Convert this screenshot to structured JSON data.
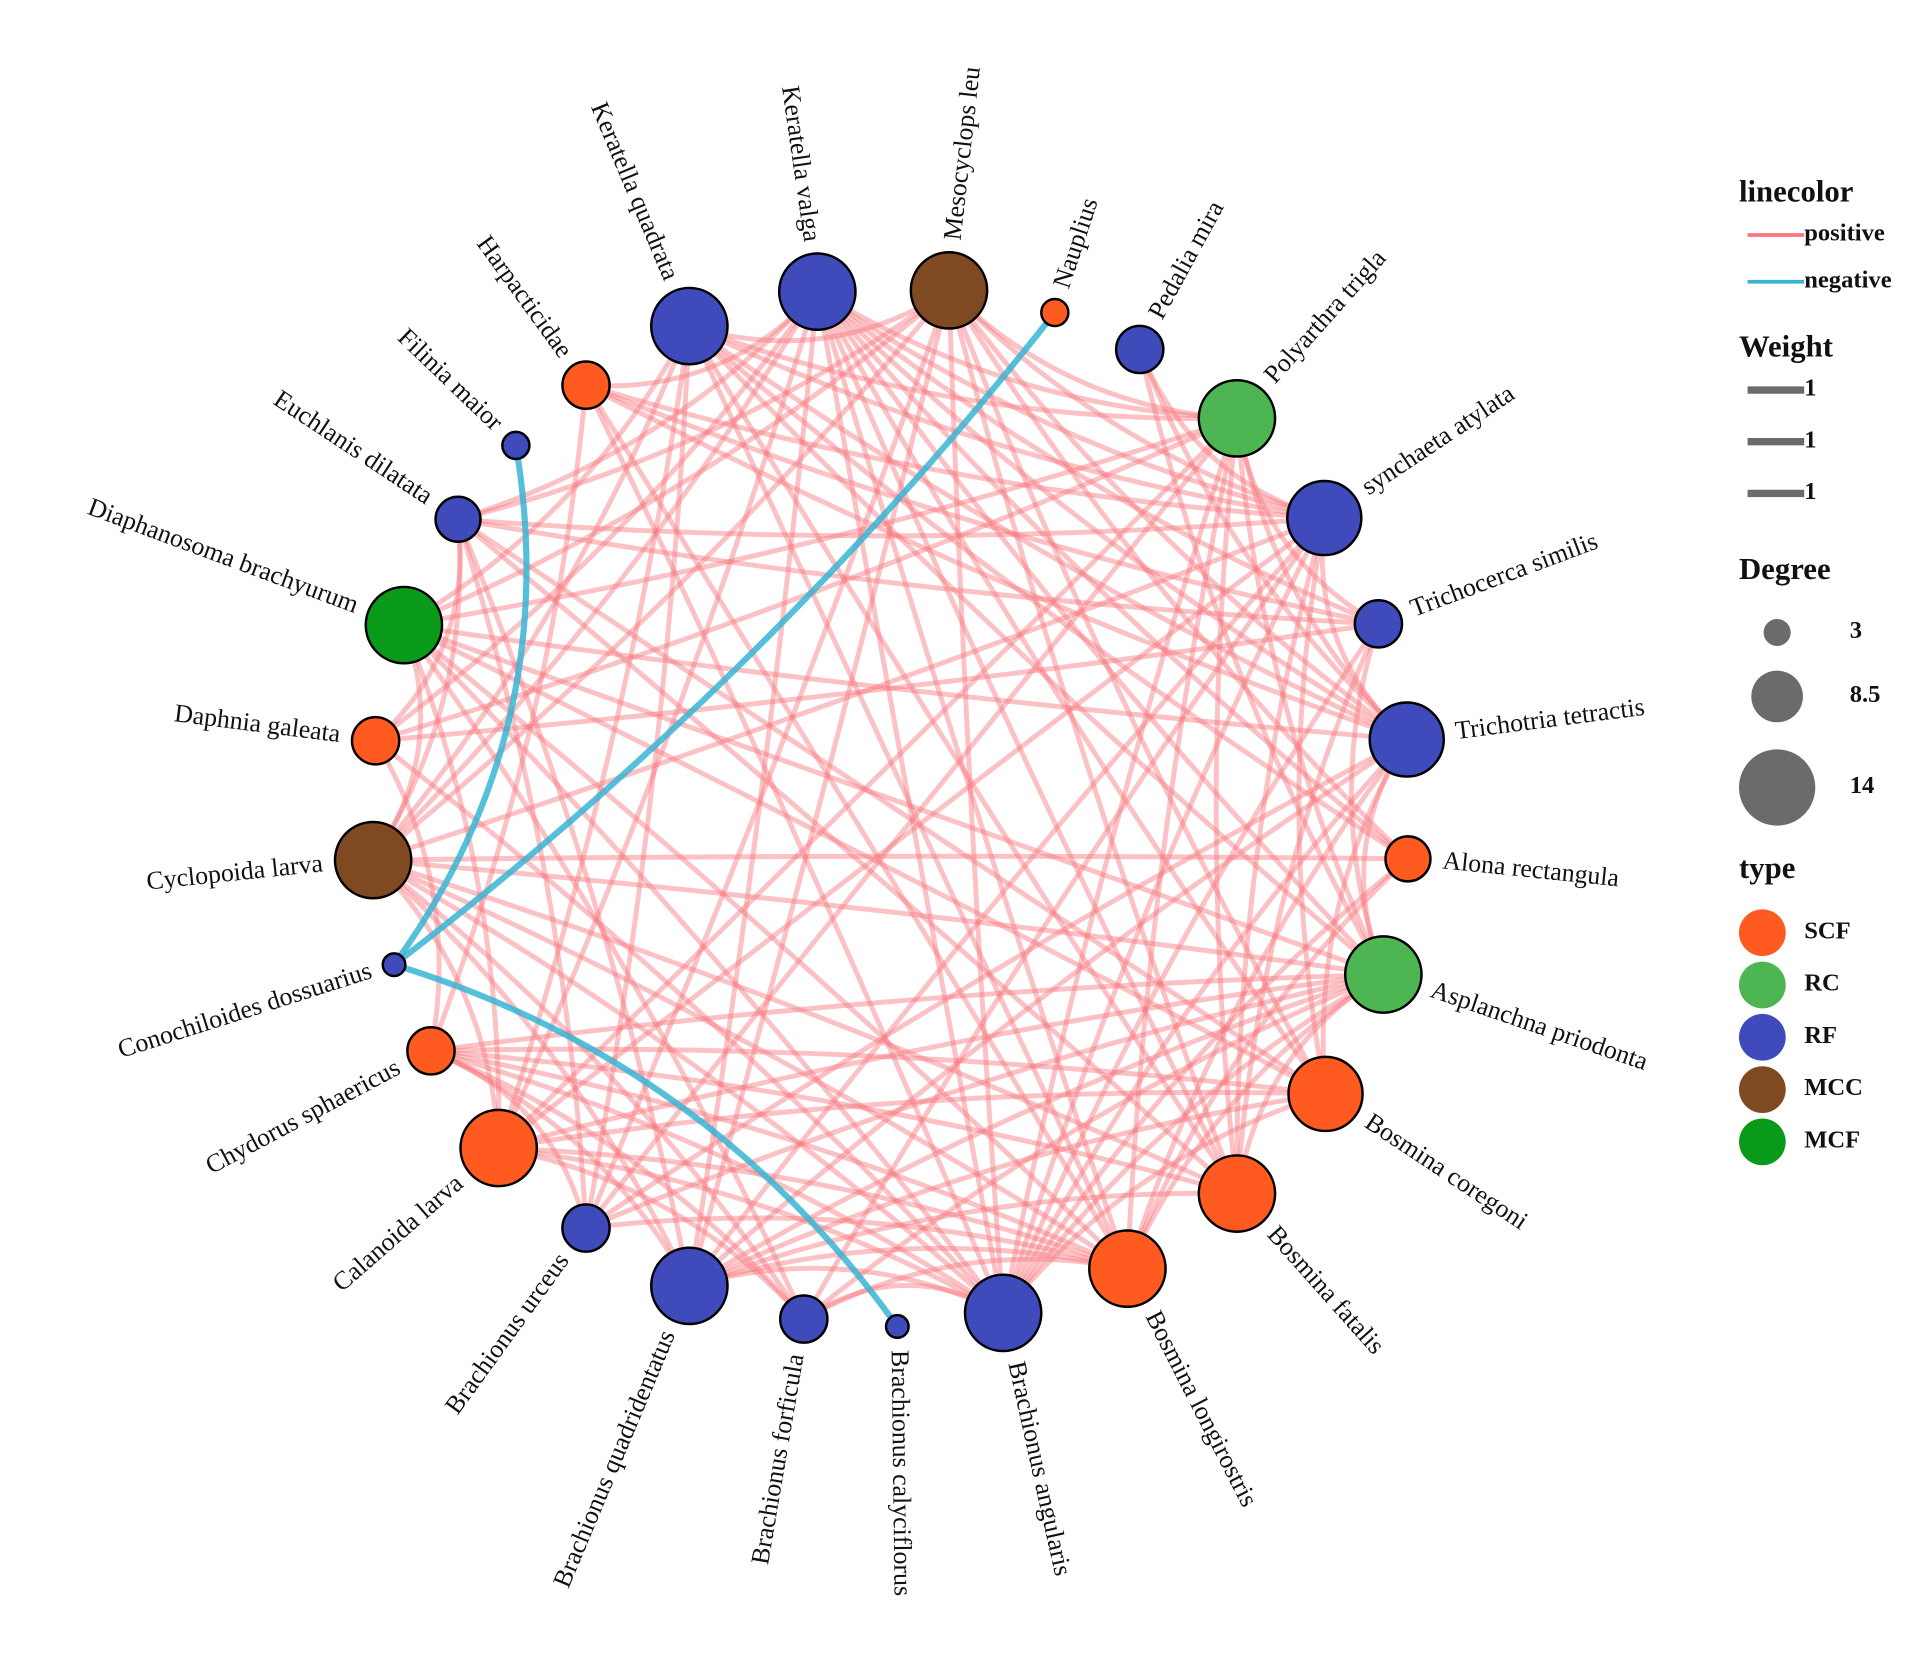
{
  "nodes": [
    {
      "label": "Keratella valga",
      "type": "RF",
      "degree": 14
    },
    {
      "label": "Mesocyclops leu",
      "type": "MCC",
      "degree": 14
    },
    {
      "label": "Nauplius",
      "type": "SCF",
      "degree": 3
    },
    {
      "label": "Pedalia mira",
      "type": "RF",
      "degree": 7.5
    },
    {
      "label": "Polyarthra trigla",
      "type": "RC",
      "degree": 14
    },
    {
      "label": "synchaeta atylata",
      "type": "RF",
      "degree": 13.5
    },
    {
      "label": "Trichocerca similis",
      "type": "RF",
      "degree": 7.5
    },
    {
      "label": "Trichotria tetractis",
      "type": "RF",
      "degree": 13.5
    },
    {
      "label": "Alona rectangula",
      "type": "SCF",
      "degree": 7
    },
    {
      "label": "Asplanchna priodonta",
      "type": "RC",
      "degree": 14
    },
    {
      "label": "Bosmina coregoni",
      "type": "SCF",
      "degree": 13.5
    },
    {
      "label": "Bosmina fatalis",
      "type": "SCF",
      "degree": 14
    },
    {
      "label": "Bosmina longirostris",
      "type": "SCF",
      "degree": 14
    },
    {
      "label": "Brachionus angularis",
      "type": "RF",
      "degree": 14
    },
    {
      "label": "Brachionus calyciflorus",
      "type": "RF",
      "degree": 2
    },
    {
      "label": "Brachionus forficula",
      "type": "RF",
      "degree": 7.5
    },
    {
      "label": "Brachionus quadridentatus",
      "type": "RF",
      "degree": 14
    },
    {
      "label": "Brachionus urceus",
      "type": "RF",
      "degree": 7.5
    },
    {
      "label": "Calanoida larva",
      "type": "SCF",
      "degree": 14
    },
    {
      "label": "Chydorus sphaericus",
      "type": "SCF",
      "degree": 7.5
    },
    {
      "label": "Conochiloides dossuarius",
      "type": "RF",
      "degree": 2
    },
    {
      "label": "Cyclopoida larva",
      "type": "MCC",
      "degree": 14
    },
    {
      "label": "Daphnia galeata",
      "type": "SCF",
      "degree": 7.5
    },
    {
      "label": "Diaphanosoma brachyurum",
      "type": "MCF",
      "degree": 14
    },
    {
      "label": "Euchlanis dilatata",
      "type": "RF",
      "degree": 7
    },
    {
      "label": "Filinia maior",
      "type": "RF",
      "degree": 3
    },
    {
      "label": "Harpacticidae",
      "type": "SCF",
      "degree": 7.5
    },
    {
      "label": "Keratella quadrata",
      "type": "RF",
      "degree": 14
    }
  ],
  "negative_edges": [
    [
      25,
      20
    ],
    [
      2,
      20
    ],
    [
      20,
      14
    ]
  ],
  "legend": {
    "linecolor": {
      "title": "linecolor",
      "items": [
        {
          "label": "positive",
          "color": "#f8767d"
        },
        {
          "label": "negative",
          "color": "#38b4d4"
        }
      ]
    },
    "weight": {
      "title": "Weight",
      "items": [
        1,
        1,
        1
      ]
    },
    "degree": {
      "title": "Degree",
      "items": [
        3,
        8.5,
        14
      ]
    },
    "type": {
      "title": "type",
      "items": [
        {
          "label": "SCF",
          "color": "#ff5a1f"
        },
        {
          "label": "RC",
          "color": "#4eb553"
        },
        {
          "label": "RF",
          "color": "#3f4bbb"
        },
        {
          "label": "MCC",
          "color": "#7f4a22"
        },
        {
          "label": "MCF",
          "color": "#0a9a1a"
        }
      ]
    }
  }
}
